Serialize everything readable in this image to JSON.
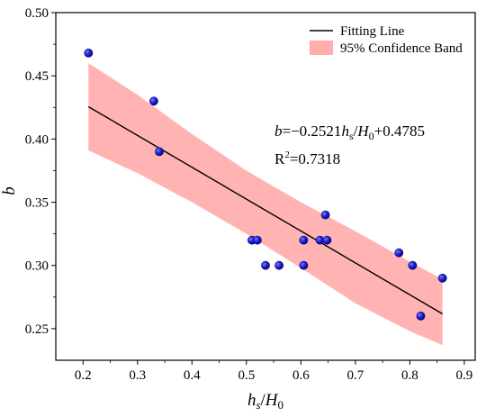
{
  "chart_data": {
    "type": "scatter",
    "xlabel": {
      "main": "h",
      "sub": "s",
      "sep": "/",
      "main2": "H",
      "sub2": "0"
    },
    "ylabel": "b",
    "xlim": [
      0.15,
      0.92
    ],
    "ylim": [
      0.225,
      0.5
    ],
    "x_ticks": [
      0.2,
      0.3,
      0.4,
      0.5,
      0.6,
      0.7,
      0.8,
      0.9
    ],
    "x_tick_labels": [
      "0.2",
      "0.3",
      "0.4",
      "0.5",
      "0.6",
      "0.7",
      "0.8",
      "0.9"
    ],
    "y_ticks": [
      0.25,
      0.3,
      0.35,
      0.4,
      0.45,
      0.5
    ],
    "y_tick_labels": [
      "0.25",
      "0.30",
      "0.35",
      "0.40",
      "0.45",
      "0.50"
    ],
    "grid": false,
    "legend_position": "top-right",
    "legend": {
      "fit_label": "Fitting Line",
      "band_label": "95% Confidence Band"
    },
    "fit": {
      "slope": -0.2521,
      "intercept": 0.4785,
      "x_range": [
        0.21,
        0.86
      ]
    },
    "confidence_band": {
      "x": [
        0.21,
        0.3,
        0.4,
        0.5,
        0.6,
        0.7,
        0.8,
        0.86
      ],
      "upper": [
        0.46,
        0.435,
        0.404,
        0.375,
        0.35,
        0.327,
        0.303,
        0.289
      ],
      "lower": [
        0.391,
        0.373,
        0.35,
        0.325,
        0.298,
        0.27,
        0.248,
        0.237
      ]
    },
    "points": [
      {
        "x": 0.21,
        "y": 0.468
      },
      {
        "x": 0.33,
        "y": 0.43
      },
      {
        "x": 0.34,
        "y": 0.39
      },
      {
        "x": 0.51,
        "y": 0.32
      },
      {
        "x": 0.52,
        "y": 0.32
      },
      {
        "x": 0.535,
        "y": 0.3
      },
      {
        "x": 0.56,
        "y": 0.3
      },
      {
        "x": 0.605,
        "y": 0.32
      },
      {
        "x": 0.605,
        "y": 0.3
      },
      {
        "x": 0.635,
        "y": 0.32
      },
      {
        "x": 0.645,
        "y": 0.34
      },
      {
        "x": 0.648,
        "y": 0.32
      },
      {
        "x": 0.78,
        "y": 0.31
      },
      {
        "x": 0.805,
        "y": 0.3
      },
      {
        "x": 0.82,
        "y": 0.26
      },
      {
        "x": 0.86,
        "y": 0.29
      }
    ],
    "annotation": {
      "eq_b": "b",
      "eq_coef": "=−0.2521",
      "eq_h": "h",
      "eq_h_sub": "s",
      "eq_slash": "/",
      "eq_H": "H",
      "eq_H_sub": "0",
      "eq_const": "+0.4785",
      "r2_label": "R",
      "r2_sup": "2",
      "r2_value": "=0.7318"
    },
    "colors": {
      "point_fill": "#1f1fd6",
      "point_edge": "#0a0a8a",
      "band_fill": "#ff9999",
      "fit_line": "#000000"
    }
  }
}
